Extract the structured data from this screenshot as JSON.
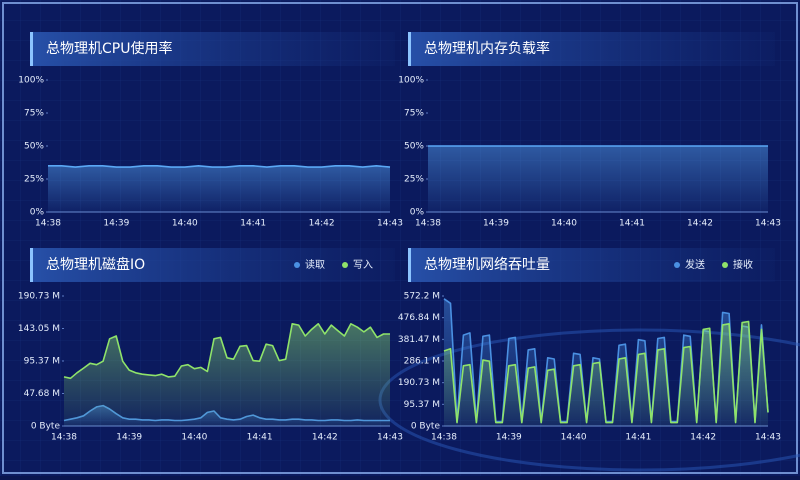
{
  "chart_data": [
    {
      "type": "line",
      "title": "总物理机CPU使用率",
      "color": "#5aa8f5",
      "categories": [
        "14:38",
        null,
        null,
        null,
        null,
        "14:39",
        null,
        null,
        null,
        null,
        "14:40",
        null,
        null,
        null,
        null,
        "14:41",
        null,
        null,
        null,
        null,
        "14:42",
        null,
        null,
        null,
        null,
        "14:43"
      ],
      "values": [
        35,
        35,
        34,
        35,
        35,
        34,
        34,
        35,
        35,
        34,
        34,
        35,
        34,
        34,
        35,
        35,
        34,
        35,
        35,
        34,
        34,
        35,
        35,
        34,
        35,
        34
      ],
      "ylim": [
        0,
        100
      ],
      "yticks": [
        {
          "value": 0,
          "label": "0%"
        },
        {
          "value": 25,
          "label": "25%"
        },
        {
          "value": 50,
          "label": "50%"
        },
        {
          "value": 75,
          "label": "75%"
        },
        {
          "value": 100,
          "label": "100%"
        }
      ]
    },
    {
      "type": "line",
      "title": "总物理机内存负载率",
      "color": "#5aa8f5",
      "categories": [
        "14:38",
        null,
        null,
        null,
        null,
        "14:39",
        null,
        null,
        null,
        null,
        "14:40",
        null,
        null,
        null,
        null,
        "14:41",
        null,
        null,
        null,
        null,
        "14:42",
        null,
        null,
        null,
        null,
        "14:43"
      ],
      "values": [
        50,
        50,
        50,
        50,
        50,
        50,
        50,
        50,
        50,
        50,
        50,
        50,
        50,
        50,
        50,
        50,
        50,
        50,
        50,
        50,
        50,
        50,
        50,
        50,
        50,
        50
      ],
      "ylim": [
        0,
        100
      ],
      "yticks": [
        {
          "value": 0,
          "label": "0%"
        },
        {
          "value": 25,
          "label": "25%"
        },
        {
          "value": 50,
          "label": "50%"
        },
        {
          "value": 75,
          "label": "75%"
        },
        {
          "value": 100,
          "label": "100%"
        }
      ]
    },
    {
      "type": "line",
      "title": "总物理机磁盘IO",
      "categories": [
        "14:38",
        null,
        null,
        null,
        null,
        null,
        null,
        null,
        null,
        null,
        "14:39",
        null,
        null,
        null,
        null,
        null,
        null,
        null,
        null,
        null,
        "14:40",
        null,
        null,
        null,
        null,
        null,
        null,
        null,
        null,
        null,
        "14:41",
        null,
        null,
        null,
        null,
        null,
        null,
        null,
        null,
        null,
        "14:42",
        null,
        null,
        null,
        null,
        null,
        null,
        null,
        null,
        null,
        "14:43"
      ],
      "series": [
        {
          "name": "读取",
          "color": "#4a90e2",
          "values": [
            8,
            10,
            12,
            15,
            22,
            28,
            30,
            25,
            18,
            12,
            10,
            10,
            9,
            9,
            8,
            9,
            9,
            8,
            8,
            9,
            10,
            12,
            20,
            22,
            12,
            10,
            9,
            10,
            14,
            16,
            12,
            10,
            10,
            9,
            9,
            10,
            10,
            9,
            9,
            8,
            8,
            9,
            9,
            8,
            8,
            9,
            8,
            8,
            8,
            8,
            8
          ]
        },
        {
          "name": "写入",
          "color": "#8fe36a",
          "values": [
            72,
            70,
            78,
            85,
            92,
            90,
            95,
            128,
            132,
            95,
            82,
            78,
            76,
            75,
            74,
            76,
            72,
            73,
            88,
            90,
            84,
            86,
            80,
            128,
            130,
            100,
            98,
            117,
            118,
            96,
            95,
            120,
            118,
            96,
            98,
            150,
            148,
            132,
            142,
            150,
            135,
            148,
            140,
            132,
            150,
            145,
            138,
            145,
            130,
            135,
            135
          ]
        }
      ],
      "ylim": [
        0,
        190.73
      ],
      "yticks": [
        {
          "value": 0,
          "label": "0 Byte"
        },
        {
          "value": 47.68,
          "label": "47.68 M"
        },
        {
          "value": 95.37,
          "label": "95.37 M"
        },
        {
          "value": 143.05,
          "label": "143.05 M"
        },
        {
          "value": 190.73,
          "label": "190.73 M"
        }
      ]
    },
    {
      "type": "line",
      "title": "总物理机网络吞吐量",
      "categories": [
        "14:38",
        null,
        null,
        null,
        null,
        null,
        null,
        null,
        null,
        null,
        "14:39",
        null,
        null,
        null,
        null,
        null,
        null,
        null,
        null,
        null,
        "14:40",
        null,
        null,
        null,
        null,
        null,
        null,
        null,
        null,
        null,
        "14:41",
        null,
        null,
        null,
        null,
        null,
        null,
        null,
        null,
        null,
        "14:42",
        null,
        null,
        null,
        null,
        null,
        null,
        null,
        null,
        null,
        "14:43"
      ],
      "series": [
        {
          "name": "发送",
          "color": "#4a90e2",
          "values": [
            560,
            540,
            20,
            400,
            410,
            20,
            395,
            400,
            20,
            20,
            385,
            390,
            20,
            335,
            340,
            20,
            300,
            295,
            20,
            20,
            320,
            315,
            20,
            300,
            295,
            20,
            20,
            355,
            360,
            20,
            380,
            375,
            20,
            385,
            390,
            20,
            20,
            400,
            395,
            20,
            420,
            415,
            20,
            500,
            495,
            20,
            440,
            435,
            20,
            445,
            60
          ]
        },
        {
          "name": "接收",
          "color": "#8fe36a",
          "values": [
            330,
            340,
            15,
            265,
            270,
            15,
            290,
            285,
            15,
            15,
            265,
            270,
            15,
            255,
            260,
            15,
            245,
            250,
            15,
            15,
            265,
            270,
            15,
            275,
            280,
            15,
            15,
            295,
            300,
            15,
            315,
            320,
            15,
            335,
            340,
            15,
            15,
            345,
            350,
            15,
            425,
            430,
            15,
            445,
            450,
            15,
            455,
            460,
            15,
            425,
            60
          ]
        }
      ],
      "ylim": [
        0,
        572.2
      ],
      "yticks": [
        {
          "value": 0,
          "label": "0 Byte"
        },
        {
          "value": 95.37,
          "label": "95.37 M"
        },
        {
          "value": 190.73,
          "label": "190.73 M"
        },
        {
          "value": 286.1,
          "label": "286.1 M"
        },
        {
          "value": 381.47,
          "label": "381.47 M"
        },
        {
          "value": 476.84,
          "label": "476.84 M"
        },
        {
          "value": 572.2,
          "label": "572.2 M"
        }
      ]
    }
  ]
}
